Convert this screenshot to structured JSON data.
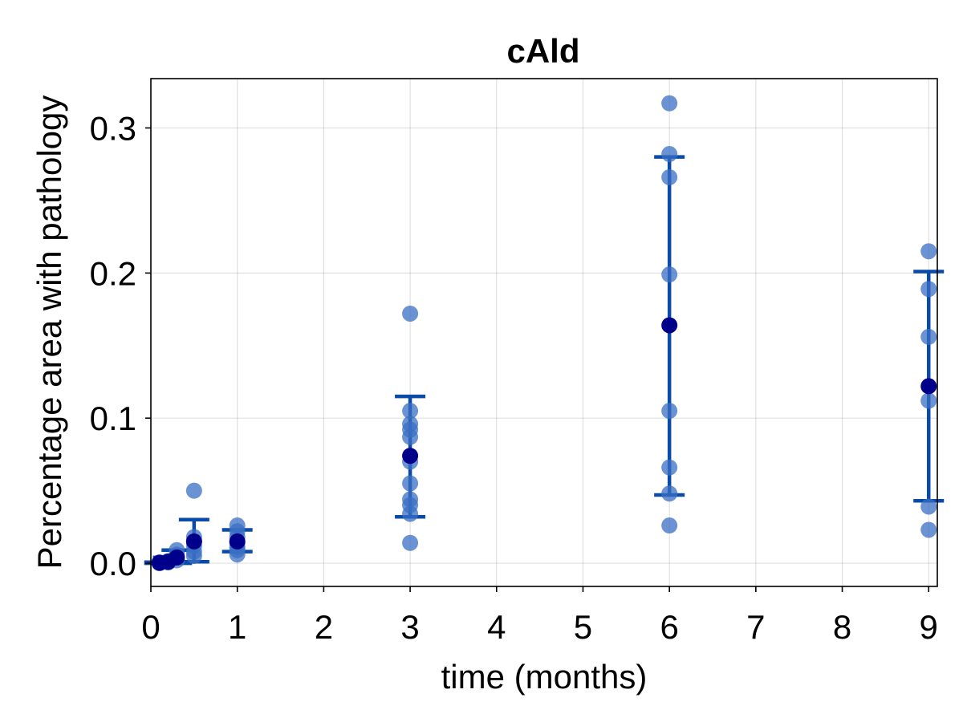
{
  "chart_data": {
    "type": "scatter",
    "title": "cAld",
    "xlabel": "time (months)",
    "ylabel": "Percentage area with pathology",
    "xlim": [
      0,
      9.1
    ],
    "ylim": [
      -0.016,
      0.334
    ],
    "xticks": [
      0,
      1,
      2,
      3,
      4,
      5,
      6,
      7,
      8,
      9
    ],
    "xtick_labels": [
      "0",
      "1",
      "2",
      "3",
      "4",
      "5",
      "6",
      "7",
      "8",
      "9"
    ],
    "yticks": [
      0.0,
      0.1,
      0.2,
      0.3
    ],
    "ytick_labels": [
      "0.0",
      "0.1",
      "0.2",
      "0.3"
    ],
    "grid": true,
    "colors": {
      "points": "#3a6fc4",
      "mean": "#00008b",
      "error_bar": "#0a4aa8"
    },
    "points": [
      {
        "x": 0.1,
        "y": 0.0
      },
      {
        "x": 0.1,
        "y": 0.0003
      },
      {
        "x": 0.1,
        "y": 0.0006
      },
      {
        "x": 0.2,
        "y": 0.0005
      },
      {
        "x": 0.2,
        "y": 0.001
      },
      {
        "x": 0.2,
        "y": 0.0015
      },
      {
        "x": 0.3,
        "y": 0.002
      },
      {
        "x": 0.3,
        "y": 0.004
      },
      {
        "x": 0.3,
        "y": 0.006
      },
      {
        "x": 0.3,
        "y": 0.009
      },
      {
        "x": 0.5,
        "y": 0.05
      },
      {
        "x": 0.5,
        "y": 0.018
      },
      {
        "x": 0.5,
        "y": 0.015
      },
      {
        "x": 0.5,
        "y": 0.012
      },
      {
        "x": 0.5,
        "y": 0.008
      },
      {
        "x": 0.5,
        "y": 0.005
      },
      {
        "x": 1,
        "y": 0.026
      },
      {
        "x": 1,
        "y": 0.022
      },
      {
        "x": 1,
        "y": 0.018
      },
      {
        "x": 1,
        "y": 0.014
      },
      {
        "x": 1,
        "y": 0.011
      },
      {
        "x": 1,
        "y": 0.009
      },
      {
        "x": 1,
        "y": 0.006
      },
      {
        "x": 3,
        "y": 0.172
      },
      {
        "x": 3,
        "y": 0.105
      },
      {
        "x": 3,
        "y": 0.096
      },
      {
        "x": 3,
        "y": 0.092
      },
      {
        "x": 3,
        "y": 0.087
      },
      {
        "x": 3,
        "y": 0.07
      },
      {
        "x": 3,
        "y": 0.055
      },
      {
        "x": 3,
        "y": 0.044
      },
      {
        "x": 3,
        "y": 0.04
      },
      {
        "x": 3,
        "y": 0.034
      },
      {
        "x": 3,
        "y": 0.014
      },
      {
        "x": 6,
        "y": 0.317
      },
      {
        "x": 6,
        "y": 0.282
      },
      {
        "x": 6,
        "y": 0.266
      },
      {
        "x": 6,
        "y": 0.199
      },
      {
        "x": 6,
        "y": 0.105
      },
      {
        "x": 6,
        "y": 0.066
      },
      {
        "x": 6,
        "y": 0.048
      },
      {
        "x": 6,
        "y": 0.026
      },
      {
        "x": 9,
        "y": 0.215
      },
      {
        "x": 9,
        "y": 0.189
      },
      {
        "x": 9,
        "y": 0.156
      },
      {
        "x": 9,
        "y": 0.112
      },
      {
        "x": 9,
        "y": 0.039
      },
      {
        "x": 9,
        "y": 0.023
      }
    ],
    "summary": [
      {
        "x": 0.1,
        "mean": 0.0003,
        "lower": 0.0,
        "upper": 0.0007
      },
      {
        "x": 0.2,
        "mean": 0.001,
        "lower": 0.0,
        "upper": 0.004
      },
      {
        "x": 0.3,
        "mean": 0.004,
        "lower": 0.0,
        "upper": 0.009
      },
      {
        "x": 0.5,
        "mean": 0.015,
        "lower": 0.001,
        "upper": 0.03
      },
      {
        "x": 1,
        "mean": 0.015,
        "lower": 0.008,
        "upper": 0.023
      },
      {
        "x": 3,
        "mean": 0.074,
        "lower": 0.032,
        "upper": 0.115
      },
      {
        "x": 6,
        "mean": 0.164,
        "lower": 0.047,
        "upper": 0.28
      },
      {
        "x": 9,
        "mean": 0.122,
        "lower": 0.043,
        "upper": 0.201
      }
    ]
  }
}
